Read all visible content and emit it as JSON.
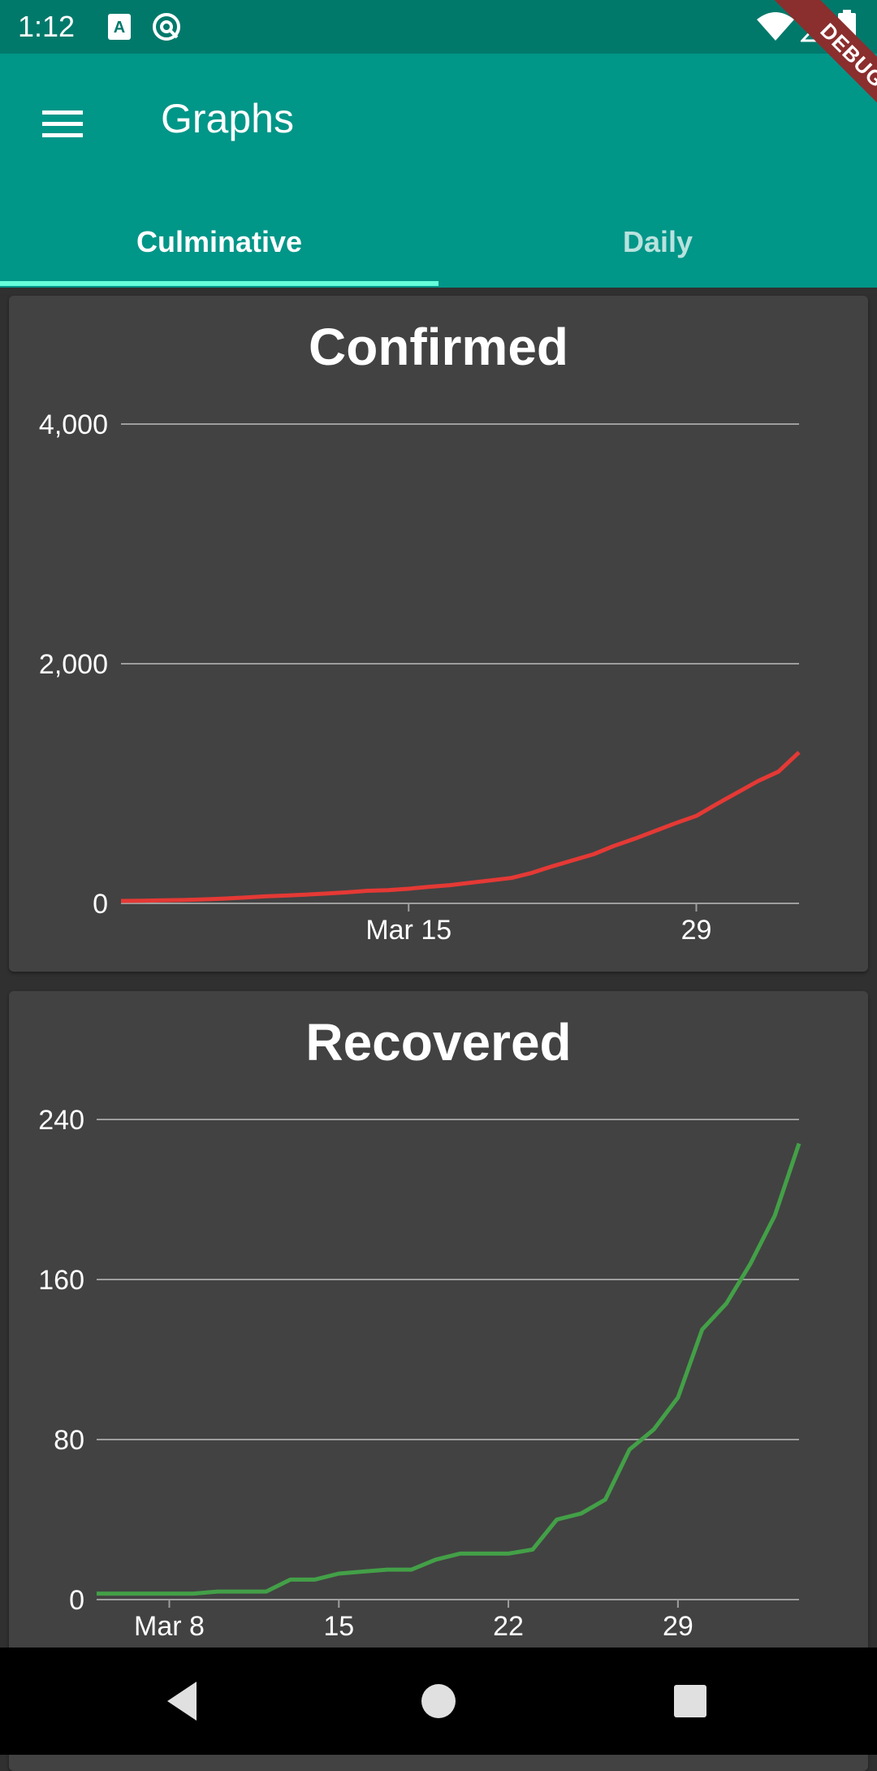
{
  "status_bar": {
    "time": "1:12",
    "icons": [
      "a-letter-icon",
      "at-sign-icon",
      "wifi-icon",
      "signal-icon",
      "battery-icon"
    ]
  },
  "app_bar": {
    "menu_icon": "hamburger-menu-icon",
    "title": "Graphs",
    "tabs": [
      {
        "label": "Culminative",
        "selected": true
      },
      {
        "label": "Daily",
        "selected": false
      }
    ],
    "indicator_color": "#64ffda"
  },
  "debug_banner": {
    "label": "DEBUG"
  },
  "colors": {
    "status_bar": "#00796b",
    "app_bar": "#009688",
    "background": "#303030",
    "card": "#424242",
    "confirmed_line": "#e53935",
    "recovered_line": "#43a047",
    "gridline": "#9e9e9e"
  },
  "chart_data": [
    {
      "type": "line",
      "title": "Confirmed",
      "x_ticks": [
        "Mar 15",
        "29"
      ],
      "y_ticks": [
        "4,000",
        "2,000",
        "0"
      ],
      "ylim": [
        0,
        4000
      ],
      "x": [
        "2020-03-01",
        "2020-03-02",
        "2020-03-03",
        "2020-03-04",
        "2020-03-05",
        "2020-03-06",
        "2020-03-07",
        "2020-03-08",
        "2020-03-09",
        "2020-03-10",
        "2020-03-11",
        "2020-03-12",
        "2020-03-13",
        "2020-03-14",
        "2020-03-15",
        "2020-03-16",
        "2020-03-17",
        "2020-03-18",
        "2020-03-19",
        "2020-03-20",
        "2020-03-21",
        "2020-03-22",
        "2020-03-23",
        "2020-03-24",
        "2020-03-25",
        "2020-03-26",
        "2020-03-27",
        "2020-03-28",
        "2020-03-29",
        "2020-03-30",
        "2020-03-31",
        "2020-04-01",
        "2020-04-02",
        "2020-04-03"
      ],
      "series": [
        {
          "values": [
            20,
            22,
            25,
            28,
            33,
            40,
            48,
            58,
            65,
            73,
            82,
            92,
            105,
            110,
            122,
            138,
            152,
            172,
            192,
            212,
            255,
            310,
            360,
            410,
            480,
            540,
            605,
            670,
            730,
            830,
            925,
            1020,
            1100,
            1260
          ]
        }
      ],
      "grid": true,
      "color": "#e53935"
    },
    {
      "type": "line",
      "title": "Recovered",
      "x_ticks": [
        "Mar 8",
        "15",
        "22",
        "29"
      ],
      "y_ticks": [
        "240",
        "160",
        "80",
        "0"
      ],
      "ylim": [
        0,
        240
      ],
      "x": [
        "2020-03-05",
        "2020-03-06",
        "2020-03-07",
        "2020-03-08",
        "2020-03-09",
        "2020-03-10",
        "2020-03-11",
        "2020-03-12",
        "2020-03-13",
        "2020-03-14",
        "2020-03-15",
        "2020-03-16",
        "2020-03-17",
        "2020-03-18",
        "2020-03-19",
        "2020-03-20",
        "2020-03-21",
        "2020-03-22",
        "2020-03-23",
        "2020-03-24",
        "2020-03-25",
        "2020-03-26",
        "2020-03-27",
        "2020-03-28",
        "2020-03-29",
        "2020-03-30",
        "2020-03-31",
        "2020-04-01",
        "2020-04-02",
        "2020-04-03"
      ],
      "series": [
        {
          "values": [
            3,
            3,
            3,
            3,
            3,
            4,
            4,
            4,
            10,
            10,
            13,
            14,
            15,
            15,
            20,
            23,
            23,
            23,
            25,
            40,
            43,
            50,
            75,
            85,
            101,
            135,
            148,
            168,
            192,
            228
          ]
        }
      ],
      "grid": true,
      "color": "#43a047"
    }
  ],
  "nav_bar": {
    "buttons": [
      "back-triangle-icon",
      "home-circle-icon",
      "recents-square-icon"
    ]
  }
}
